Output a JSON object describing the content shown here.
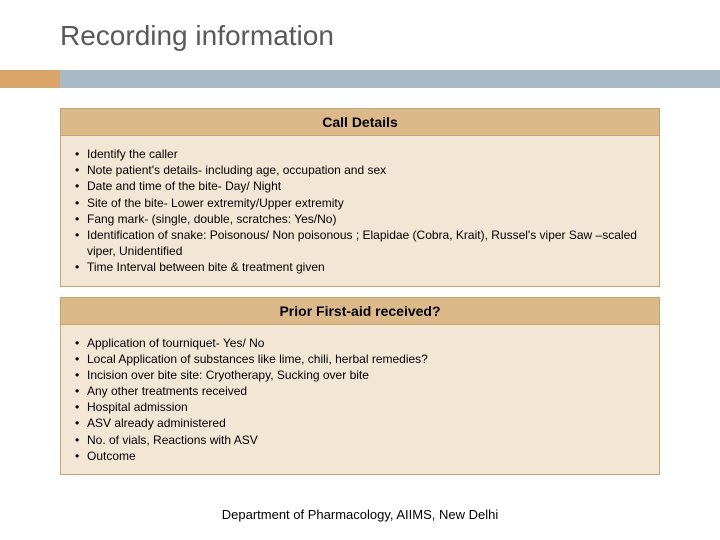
{
  "slide": {
    "title": "Recording information",
    "colors": {
      "accent_orange": "#d9a566",
      "accent_blue": "#a8b9c8",
      "header_bg": "#dcb988",
      "body_bg": "#f2e6d4",
      "border": "#c9a46f",
      "title_color": "#595959",
      "text_color": "#000000",
      "page_bg": "#ffffff"
    },
    "sections": [
      {
        "header": "Call Details",
        "items": [
          "Identify the caller",
          "Note patient's details- including age, occupation and sex",
          "Date and time of the bite- Day/ Night",
          "Site of the bite- Lower extremity/Upper extremity",
          "Fang mark- (single, double, scratches: Yes/No)",
          "Identification of snake: Poisonous/ Non poisonous ;   Elapidae (Cobra, Krait), Russel's viper Saw –scaled viper, Unidentified",
          "Time Interval between bite & treatment given"
        ]
      },
      {
        "header": "Prior First-aid received?",
        "items": [
          "Application of tourniquet- Yes/ No",
          "Local Application of substances like lime, chili, herbal remedies?",
          "Incision over bite site: Cryotherapy, Sucking over bite",
          "Any other treatments received",
          "Hospital admission",
          "ASV already administered",
          "No. of vials, Reactions with ASV",
          "Outcome"
        ]
      }
    ],
    "footer": "Department of Pharmacology, AIIMS, New Delhi"
  }
}
